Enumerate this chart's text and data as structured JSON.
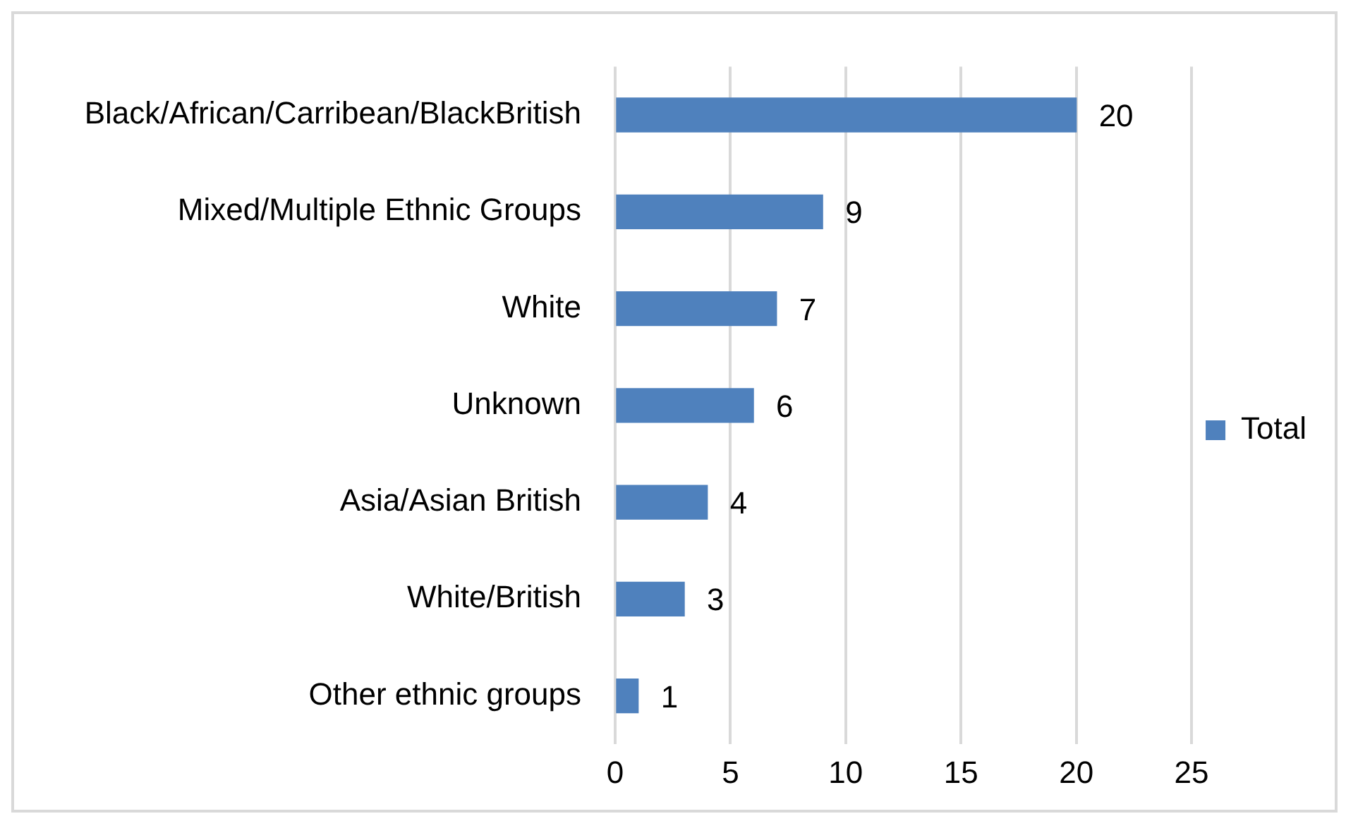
{
  "chart_data": {
    "type": "bar",
    "orientation": "horizontal",
    "categories": [
      "Black/African/Carribean/BlackBritish",
      "Mixed/Multiple Ethnic Groups",
      "White",
      "Unknown",
      "Asia/Asian British",
      "White/British",
      "Other ethnic groups"
    ],
    "series": [
      {
        "name": "Total",
        "color": "#4f81bd",
        "values": [
          20,
          9,
          7,
          6,
          4,
          3,
          1
        ]
      }
    ],
    "xlim": [
      0,
      25
    ],
    "xticks": [
      0,
      5,
      10,
      15,
      20,
      25
    ],
    "grid": "x",
    "legend": "right",
    "data_labels": true
  }
}
